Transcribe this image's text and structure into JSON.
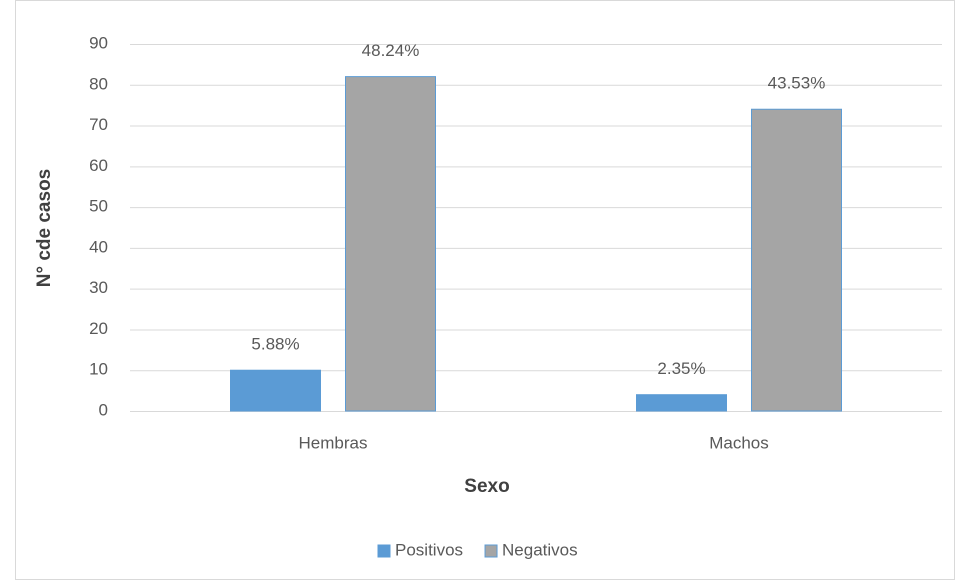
{
  "chart_data": {
    "type": "bar",
    "xlabel": "Sexo",
    "ylabel": "N° cde casos",
    "categories": [
      "Hembras",
      "Machos"
    ],
    "series": [
      {
        "name": "Positivos",
        "color": "#5b9bd5",
        "edgecolor": "#5b9bd5",
        "values": [
          10,
          4
        ],
        "value_labels": [
          "5.88%",
          "2.35%"
        ]
      },
      {
        "name": "Negativos",
        "color": "#a5a5a5",
        "edgecolor": "#5b9bd5",
        "values": [
          82,
          74
        ],
        "value_labels": [
          "48.24%",
          "43.53%"
        ]
      }
    ],
    "ylim": [
      0,
      90
    ],
    "yticks": [
      0,
      10,
      20,
      30,
      40,
      50,
      60,
      70,
      80,
      90
    ],
    "grid": true,
    "legend": "bottom"
  }
}
